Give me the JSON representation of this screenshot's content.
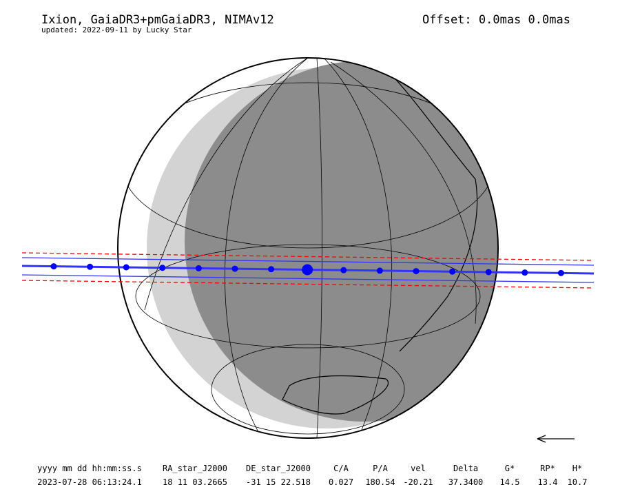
{
  "header": {
    "title": "Ixion, GaiaDR3+pmGaiaDR3, NIMAv12",
    "updated": "updated: 2022-09-11 by Lucky Star",
    "offset": "Offset: 0.0mas 0.0mas"
  },
  "table": {
    "columns": [
      "yyyy mm dd hh:mm:ss.s",
      "RA_star_J2000",
      "DE_star_J2000",
      "C/A",
      "P/A",
      "vel",
      "Delta",
      "G*",
      "RP*",
      "H*"
    ],
    "rows": [
      [
        "2023-07-28 06:13:24.1",
        "18 11 03.2665",
        "-31 15 22.518",
        "0.027",
        "180.54",
        "-20.21",
        "37.3400",
        "14.5",
        "13.4",
        "10.7"
      ]
    ]
  }
}
